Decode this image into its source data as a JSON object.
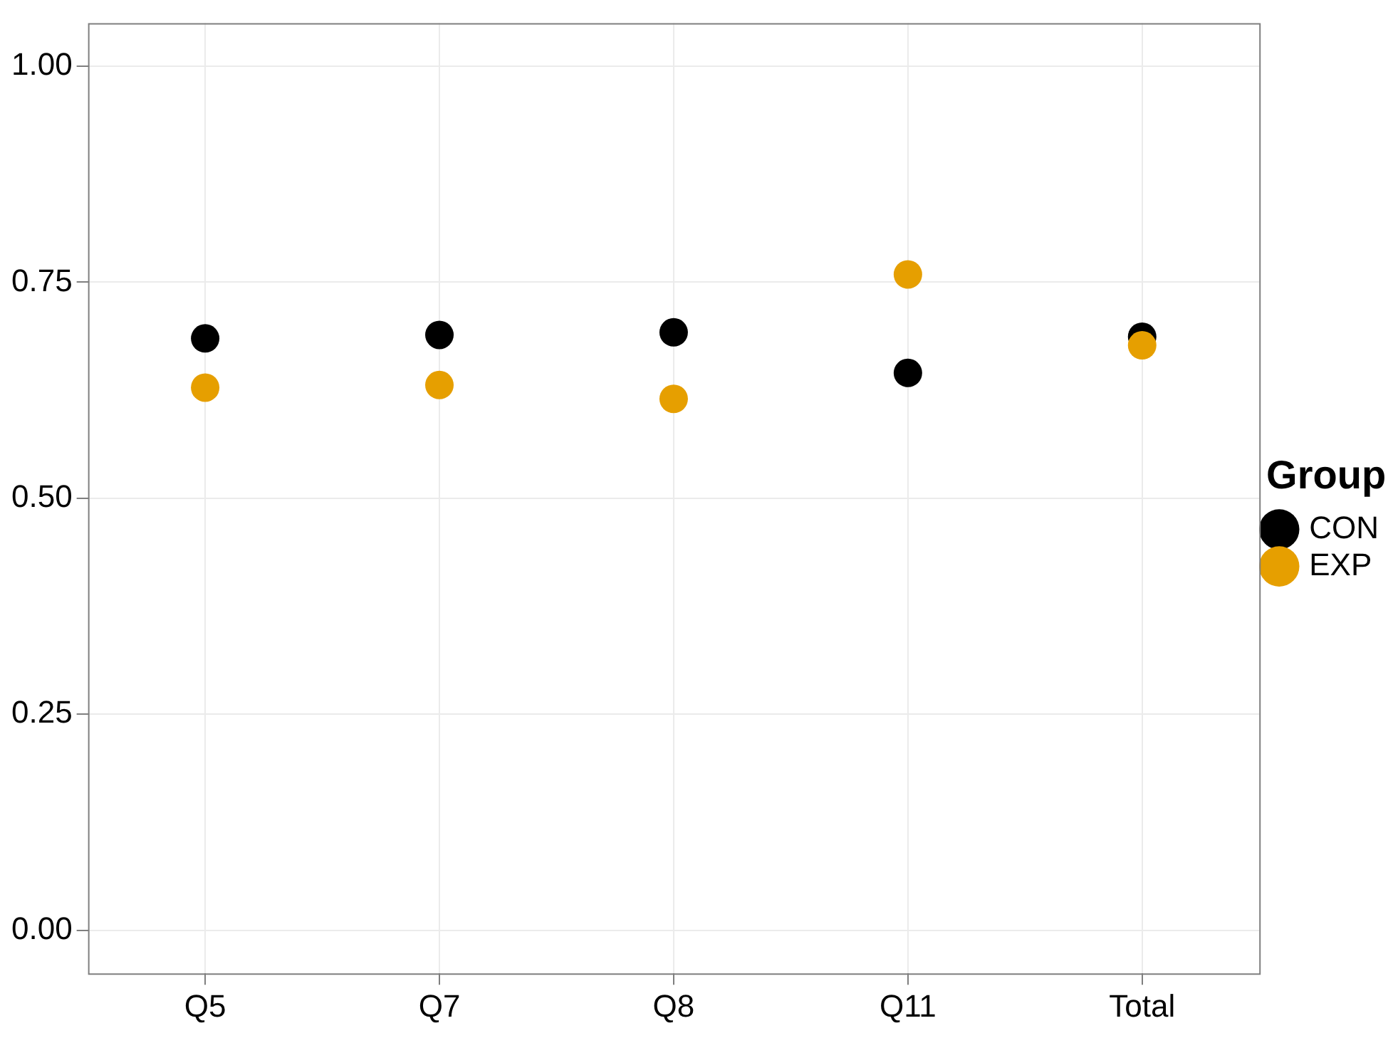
{
  "chart_data": {
    "type": "scatter",
    "categories": [
      "Q5",
      "Q7",
      "Q8",
      "Q11",
      "Total"
    ],
    "series": [
      {
        "name": "CON",
        "color": "#000000",
        "values": [
          0.685,
          0.689,
          0.692,
          0.645,
          0.687
        ]
      },
      {
        "name": "EXP",
        "color": "#e69f00",
        "values": [
          0.628,
          0.631,
          0.615,
          0.759,
          0.677
        ]
      }
    ],
    "ylim": [
      -0.05,
      1.05
    ],
    "yticks": [
      {
        "value": 0,
        "label": "0.00"
      },
      {
        "value": 0.25,
        "label": "0.25"
      },
      {
        "value": 0.5,
        "label": "0.50"
      },
      {
        "value": 0.75,
        "label": "0.75"
      },
      {
        "value": 1,
        "label": "1.00"
      }
    ],
    "legend_title": "Group",
    "legend": "right",
    "grid": true,
    "marker": "circle"
  }
}
